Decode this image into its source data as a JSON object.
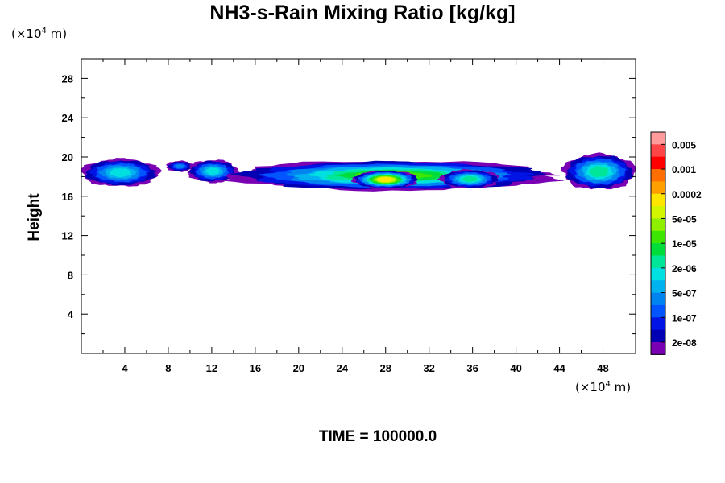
{
  "chart_data": {
    "type": "heatmap",
    "title": "NH3-s-Rain Mixing Ratio [kg/kg]",
    "ylabel": "Height",
    "xlabel": "",
    "x_unit": "(×10",
    "x_unit_exp": "4",
    "x_unit_tail": " m)",
    "y_unit": "(×10",
    "y_unit_exp": "4",
    "y_unit_tail": " m)",
    "xlim": [
      0,
      51
    ],
    "ylim": [
      0,
      30
    ],
    "x_ticks": [
      4,
      8,
      12,
      16,
      20,
      24,
      28,
      32,
      36,
      40,
      44,
      48
    ],
    "y_ticks": [
      4,
      8,
      12,
      16,
      20,
      24,
      28
    ],
    "grid": false,
    "colorbar": {
      "levels": [
        "0.005",
        "0.001",
        "0.0002",
        "5e-05",
        "1e-05",
        "2e-06",
        "5e-07",
        "1e-07",
        "2e-08"
      ],
      "colors": [
        "#ff9b9b",
        "#ff4545",
        "#ff0000",
        "#ff6e00",
        "#ffa000",
        "#ffe600",
        "#d2f500",
        "#8ef000",
        "#3ce600",
        "#00dc3a",
        "#00e699",
        "#00e0e0",
        "#00b2f0",
        "#0084f0",
        "#0055ff",
        "#0014e6",
        "#0000b4",
        "#7a00b4"
      ]
    },
    "field_band": {
      "height_range": [
        16.5,
        20.3
      ],
      "peak_value": "0.0002",
      "peak_location_x": 27
    }
  },
  "footer": {
    "time_label": "TIME = ",
    "time_value": "100000.0"
  }
}
